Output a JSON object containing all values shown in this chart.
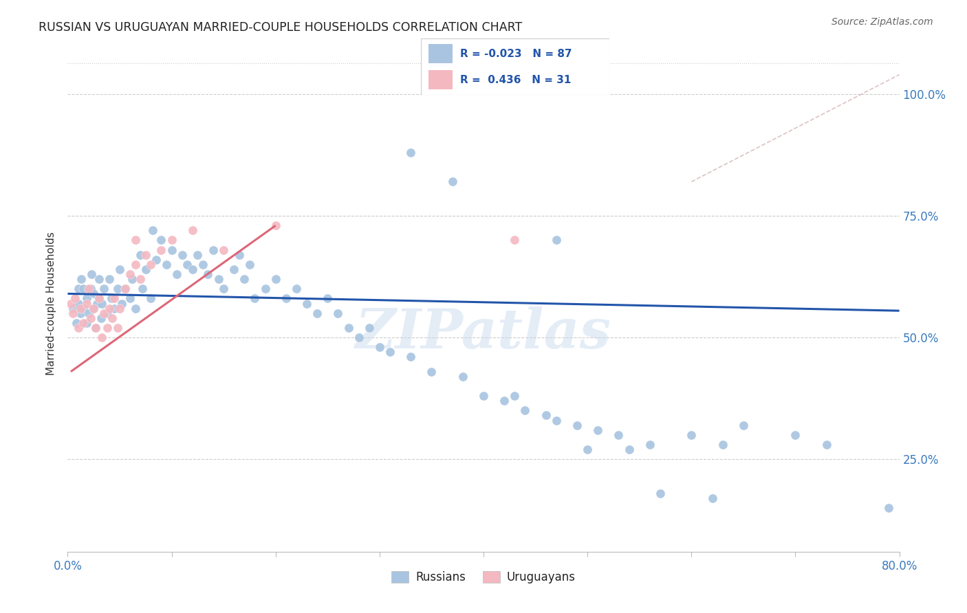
{
  "title": "RUSSIAN VS URUGUAYAN MARRIED-COUPLE HOUSEHOLDS CORRELATION CHART",
  "source": "Source: ZipAtlas.com",
  "ylabel": "Married-couple Households",
  "ytick_labels": [
    "100.0%",
    "75.0%",
    "50.0%",
    "25.0%"
  ],
  "ytick_values": [
    1.0,
    0.75,
    0.5,
    0.25
  ],
  "xmin": 0.0,
  "xmax": 0.8,
  "ymin": 0.06,
  "ymax": 1.08,
  "russian_color": "#a8c4e0",
  "uruguayan_color": "#f4b8c1",
  "russian_line_color": "#2255aa",
  "uruguayan_line_color": "#dd6677",
  "watermark": "ZIPatlas",
  "russians_x": [
    0.005,
    0.008,
    0.01,
    0.01,
    0.012,
    0.013,
    0.015,
    0.015,
    0.018,
    0.018,
    0.02,
    0.022,
    0.023,
    0.025,
    0.025,
    0.027,
    0.028,
    0.03,
    0.03,
    0.032,
    0.033,
    0.035,
    0.038,
    0.04,
    0.042,
    0.045,
    0.048,
    0.05,
    0.052,
    0.055,
    0.06,
    0.062,
    0.065,
    0.07,
    0.072,
    0.075,
    0.08,
    0.082,
    0.085,
    0.09,
    0.095,
    0.1,
    0.105,
    0.11,
    0.115,
    0.12,
    0.125,
    0.13,
    0.135,
    0.14,
    0.145,
    0.15,
    0.16,
    0.165,
    0.17,
    0.175,
    0.18,
    0.19,
    0.2,
    0.21,
    0.22,
    0.23,
    0.24,
    0.25,
    0.26,
    0.27,
    0.28,
    0.29,
    0.3,
    0.31,
    0.33,
    0.35,
    0.38,
    0.4,
    0.42,
    0.44,
    0.46,
    0.49,
    0.51,
    0.53,
    0.56,
    0.6,
    0.63,
    0.65,
    0.7,
    0.73,
    0.79
  ],
  "russians_y": [
    0.56,
    0.53,
    0.6,
    0.57,
    0.55,
    0.62,
    0.56,
    0.6,
    0.53,
    0.58,
    0.55,
    0.6,
    0.63,
    0.56,
    0.59,
    0.52,
    0.57,
    0.58,
    0.62,
    0.54,
    0.57,
    0.6,
    0.55,
    0.62,
    0.58,
    0.56,
    0.6,
    0.64,
    0.57,
    0.6,
    0.58,
    0.62,
    0.56,
    0.67,
    0.6,
    0.64,
    0.58,
    0.72,
    0.66,
    0.7,
    0.65,
    0.68,
    0.63,
    0.67,
    0.65,
    0.64,
    0.67,
    0.65,
    0.63,
    0.68,
    0.62,
    0.6,
    0.64,
    0.67,
    0.62,
    0.65,
    0.58,
    0.6,
    0.62,
    0.58,
    0.6,
    0.57,
    0.55,
    0.58,
    0.55,
    0.52,
    0.5,
    0.52,
    0.48,
    0.47,
    0.46,
    0.43,
    0.42,
    0.38,
    0.37,
    0.35,
    0.34,
    0.32,
    0.31,
    0.3,
    0.28,
    0.3,
    0.28,
    0.32,
    0.3,
    0.28,
    0.15
  ],
  "uruguayans_x": [
    0.003,
    0.005,
    0.007,
    0.01,
    0.012,
    0.015,
    0.018,
    0.02,
    0.022,
    0.025,
    0.027,
    0.03,
    0.033,
    0.035,
    0.038,
    0.04,
    0.043,
    0.045,
    0.048,
    0.05,
    0.055,
    0.06,
    0.065,
    0.07,
    0.075,
    0.08,
    0.09,
    0.1,
    0.12,
    0.15,
    0.2
  ],
  "uruguayans_y": [
    0.57,
    0.55,
    0.58,
    0.52,
    0.56,
    0.53,
    0.57,
    0.6,
    0.54,
    0.56,
    0.52,
    0.58,
    0.5,
    0.55,
    0.52,
    0.56,
    0.54,
    0.58,
    0.52,
    0.56,
    0.6,
    0.63,
    0.65,
    0.62,
    0.67,
    0.65,
    0.68,
    0.7,
    0.72,
    0.68,
    0.73
  ],
  "russian_trend_x": [
    0.0,
    0.8
  ],
  "russian_trend_y": [
    0.59,
    0.555
  ],
  "uruguayan_trend_x": [
    0.003,
    0.2
  ],
  "uruguayan_trend_y": [
    0.43,
    0.73
  ],
  "dashed_line_x": [
    0.6,
    0.8
  ],
  "dashed_line_y": [
    0.82,
    1.04
  ]
}
